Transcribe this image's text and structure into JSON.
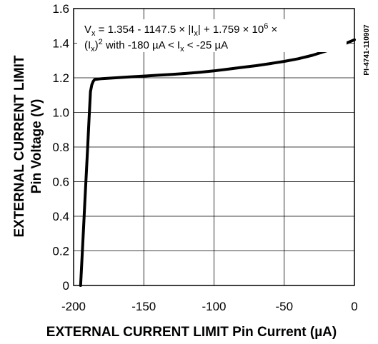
{
  "chart_data": {
    "type": "line",
    "title": "",
    "xlabel": "EXTERNAL CURRENT LIMIT Pin Current (µA)",
    "ylabel_line1": "EXTERNAL CURRENT LIMIT",
    "ylabel_line2": "Pin Voltage (V)",
    "xlim": [
      -200,
      0
    ],
    "ylim": [
      0,
      1.6
    ],
    "x_ticks": [
      -200,
      -150,
      -100,
      -50,
      0
    ],
    "x_tick_labels": [
      "-200",
      "-150",
      "-100",
      "-50",
      "0"
    ],
    "y_ticks": [
      0,
      0.2,
      0.4,
      0.6,
      0.8,
      1.0,
      1.2,
      1.4,
      1.6
    ],
    "y_tick_labels": [
      "0",
      "0.2",
      "0.4",
      "0.6",
      "0.8",
      "1.0",
      "1.2",
      "1.4",
      "1.6"
    ],
    "grid": true,
    "series": [
      {
        "x": [
          -195,
          -194,
          -193,
          -192,
          -191,
          -190,
          -189,
          -188,
          -187,
          -186,
          -185,
          -180,
          -170,
          -160,
          -150,
          -140,
          -130,
          -120,
          -110,
          -100,
          -90,
          -80,
          -70,
          -60,
          -50,
          -40,
          -30,
          -20,
          -10,
          0
        ],
        "y": [
          0.0,
          0.16,
          0.32,
          0.48,
          0.64,
          0.8,
          0.96,
          1.12,
          1.16,
          1.18,
          1.19,
          1.195,
          1.2,
          1.205,
          1.21,
          1.215,
          1.22,
          1.225,
          1.232,
          1.24,
          1.25,
          1.26,
          1.27,
          1.282,
          1.295,
          1.31,
          1.33,
          1.355,
          1.385,
          1.42
        ]
      }
    ],
    "annotation": {
      "line1_part1": "V",
      "line1_sub1": "x",
      "line1_part2": " = 1.354 - 1147.5 × |I",
      "line1_sub2": "x",
      "line1_part3": "| + 1.759 × 10",
      "line1_sup": "6",
      "line1_part4": " ×",
      "line2_part1": "(I",
      "line2_sub1": "x",
      "line2_part2": ")",
      "line2_sup": "2",
      "line2_part3": " with -180 µA < I",
      "line2_sub2": "x",
      "line2_part4": " < -25 µA"
    },
    "doc_id": "PI-4741-110907"
  }
}
